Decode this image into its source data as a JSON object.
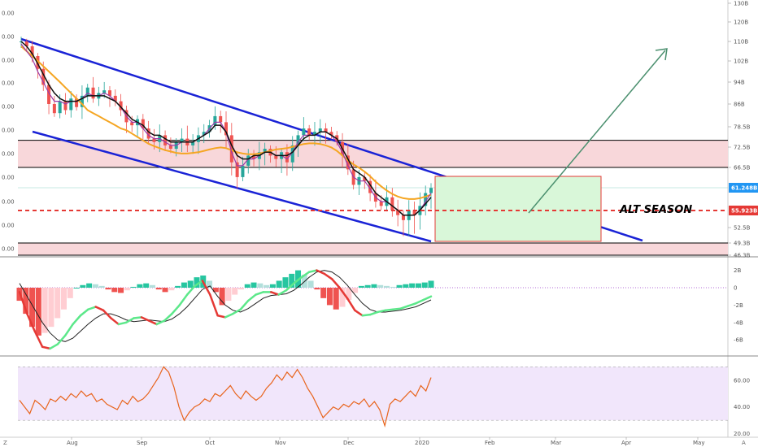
{
  "chart_data": [
    {
      "type": "candlestick",
      "title": "",
      "annotation": "ALT SEASON",
      "x_labels": [
        "Aug",
        "Sep",
        "Oct",
        "Nov",
        "Dec",
        "2020",
        "Feb",
        "Mar",
        "Apr",
        "May"
      ],
      "right_axis_ticks": [
        "130B",
        "120B",
        "110B",
        "102B",
        "94B",
        "86B",
        "78.5B",
        "72.5B",
        "66.5B",
        "52.5B",
        "49.3B",
        "46.3B"
      ],
      "left_axis_ticks": [
        "0.00",
        "0.00",
        "0.00",
        "0.00",
        "0.00",
        "0.00",
        "0.00",
        "0.00",
        "0.00",
        "0.00",
        "0.00"
      ],
      "price_tags": [
        {
          "label": "61.248B",
          "color": "#2196f3"
        },
        {
          "label": "55.923B",
          "color": "#e53935"
        }
      ],
      "candles_close": [
        110,
        108,
        104,
        99,
        93,
        86,
        83,
        87,
        84,
        88,
        85,
        89,
        92,
        88,
        90,
        91,
        89,
        87,
        84,
        80,
        79,
        81,
        78,
        75,
        74,
        76,
        73,
        72,
        74,
        75,
        73,
        74,
        76,
        77,
        79,
        82,
        80,
        76,
        68,
        64,
        67,
        70,
        69,
        71,
        72,
        70,
        69,
        71,
        68,
        73,
        76,
        78,
        76,
        77,
        78,
        77,
        76,
        74,
        70,
        66,
        62,
        64,
        63,
        60,
        58,
        57,
        59,
        56,
        55,
        54,
        56,
        55,
        57,
        60,
        61.2
      ],
      "ma_orange": [
        108,
        106,
        104,
        102,
        100,
        98,
        96,
        94,
        92,
        90,
        88,
        86,
        84,
        83,
        82,
        81,
        80,
        79,
        78,
        77.5,
        76.5,
        75.5,
        74.5,
        73.5,
        72.8,
        72.2,
        71.6,
        71.2,
        70.8,
        70.6,
        70.6,
        70.8,
        71,
        71.4,
        71.8,
        72.2,
        72.4,
        72.2,
        71.6,
        71,
        70.6,
        70.4,
        70.4,
        70.6,
        71,
        71.4,
        71.8,
        72,
        72.2,
        72.6,
        73,
        73.4,
        73.6,
        73.6,
        73.4,
        73,
        72.4,
        71.4,
        70,
        68.6,
        67.4,
        66.4,
        65.4,
        64.2,
        62.8,
        61.6,
        60.6,
        59.8,
        59.2,
        58.8,
        58.6,
        58.6,
        58.8,
        59.2,
        59.6
      ],
      "ma_black": [
        110,
        108,
        105,
        101,
        97,
        93,
        90,
        88,
        87,
        87,
        87,
        88,
        89,
        89,
        89,
        89,
        88,
        87,
        85,
        83,
        81,
        80,
        79,
        77,
        76,
        76,
        75,
        74,
        74,
        74,
        74,
        74,
        75,
        76,
        77,
        79,
        79,
        77,
        73,
        70,
        69,
        69,
        70,
        70,
        71,
        71,
        70,
        70,
        70,
        71,
        73,
        75,
        76,
        76,
        77,
        77,
        76,
        75,
        72,
        69,
        66,
        65,
        64,
        62,
        60,
        59,
        58,
        57,
        56,
        55,
        55,
        55,
        56,
        57.5,
        59
      ],
      "ma_purple": [
        109,
        106,
        103,
        98,
        94,
        90,
        87,
        87,
        86,
        87,
        87,
        88,
        90,
        89,
        89,
        90,
        89,
        87,
        85,
        82,
        80,
        80,
        78,
        76,
        75,
        75,
        74,
        73,
        73,
        74,
        74,
        74,
        75,
        76,
        78,
        80,
        80,
        77,
        71,
        67,
        67,
        69,
        69,
        70,
        71,
        71,
        70,
        70,
        69,
        71,
        74,
        76,
        76,
        76,
        77,
        77,
        76,
        74,
        71,
        67,
        64,
        63,
        63,
        61,
        59,
        58,
        58,
        57,
        56,
        55,
        55,
        55,
        56,
        58,
        60
      ],
      "y_range": [
        46.3,
        130
      ],
      "zones": [
        {
          "from": 66.5,
          "to": 74.5,
          "color": "#f8d7da",
          "border": "#000000"
        },
        {
          "from": 46.3,
          "to": 49.3,
          "color": "#f8d7da",
          "border": "#000000"
        }
      ]
    },
    {
      "type": "histogram",
      "title": "",
      "right_axis_ticks": [
        "2B",
        "0",
        "-2B",
        "-4B",
        "-6B"
      ],
      "y_range": [
        -7,
        2.6
      ],
      "hist": [
        -1.5,
        -3,
        -4.5,
        -5.5,
        -5.2,
        -4.5,
        -3.5,
        -2.5,
        -1.2,
        0,
        0.3,
        0.5,
        0.4,
        0.2,
        -0.2,
        -0.5,
        -0.6,
        -0.3,
        0.1,
        0.4,
        0.5,
        0.3,
        -0.2,
        -0.5,
        -0.3,
        0.2,
        0.6,
        0.8,
        1.2,
        1.4,
        0.8,
        -0.5,
        -2,
        -1.5,
        -0.8,
        -0.2,
        0.4,
        0.6,
        0.5,
        0.3,
        0.4,
        0.8,
        1.2,
        1.6,
        2,
        1.5,
        0.8,
        -0.2,
        -1.2,
        -2,
        -2.5,
        -2.2,
        -1.4,
        -0.6,
        0.2,
        0.3,
        0.4,
        0.3,
        0.2,
        0.1,
        0.3,
        0.4,
        0.5,
        0.5,
        0.6,
        0.8
      ],
      "macd_line": [
        -0.5,
        -3,
        -5,
        -6.8,
        -7,
        -6.5,
        -5.5,
        -4.2,
        -3.2,
        -2.5,
        -2.2,
        -2.6,
        -3.5,
        -4.2,
        -4,
        -3.5,
        -3.4,
        -3.8,
        -4.2,
        -3.8,
        -3,
        -2,
        -0.8,
        0.2,
        0.8,
        -0.8,
        -3.2,
        -3.4,
        -3,
        -2.5,
        -1.5,
        -0.8,
        -0.5,
        -0.5,
        -0.8,
        -0.3,
        0.5,
        1.2,
        1.8,
        2,
        1.6,
        1,
        0,
        -1.2,
        -2.6,
        -3.2,
        -3.1,
        -2.8,
        -2.6,
        -2.5,
        -2.4,
        -2.1,
        -1.8,
        -1.4,
        -1
      ],
      "signal_line": [
        0.5,
        -1,
        -2.5,
        -4,
        -5.2,
        -6,
        -6.2,
        -5.8,
        -5,
        -4.2,
        -3.5,
        -3,
        -3,
        -3.3,
        -3.7,
        -3.9,
        -3.8,
        -3.7,
        -3.8,
        -3.9,
        -3.6,
        -3,
        -2.2,
        -1.2,
        -0.2,
        0.2,
        -1,
        -2,
        -2.6,
        -2.8,
        -2.4,
        -1.8,
        -1.2,
        -0.9,
        -0.8,
        -0.7,
        -0.3,
        0.4,
        1.2,
        1.8,
        2,
        1.8,
        1.2,
        0.3,
        -0.8,
        -1.8,
        -2.5,
        -2.8,
        -2.8,
        -2.7,
        -2.6,
        -2.4,
        -2.2,
        -1.8,
        -1.4
      ]
    },
    {
      "type": "line",
      "title": "",
      "right_axis_ticks": [
        "60.00",
        "40.00",
        "20.00"
      ],
      "y_range": [
        18,
        72
      ],
      "band": [
        30,
        70
      ],
      "values": [
        45,
        40,
        35,
        45,
        42,
        38,
        46,
        44,
        48,
        45,
        50,
        47,
        52,
        48,
        50,
        44,
        46,
        42,
        40,
        38,
        45,
        42,
        48,
        44,
        46,
        50,
        56,
        62,
        70,
        66,
        55,
        40,
        30,
        36,
        40,
        42,
        46,
        44,
        50,
        48,
        52,
        56,
        50,
        46,
        52,
        48,
        45,
        48,
        54,
        58,
        64,
        60,
        66,
        62,
        68,
        62,
        54,
        48,
        40,
        32,
        36,
        40,
        38,
        42,
        40,
        44,
        42,
        46,
        40,
        44,
        38,
        26,
        42,
        46,
        44,
        48,
        52,
        48,
        56,
        52,
        62
      ],
      "line_color": "#e8641c"
    }
  ],
  "colors": {
    "channel": "#1a23d6",
    "ma_orange": "#f5a623",
    "ma_black": "#111111",
    "ma_purple": "#9b3aa8",
    "green_zone": "#d9f7d9",
    "green_zone_border": "#e53935",
    "arrow": "#4a8f6e",
    "support_dashed": "#e53935",
    "up_candle": "#26a69a",
    "down_candle": "#ef5350",
    "rsi_band": "#f1e6fb"
  },
  "footer": {
    "left_icon": "Z",
    "right_icon": "A"
  }
}
